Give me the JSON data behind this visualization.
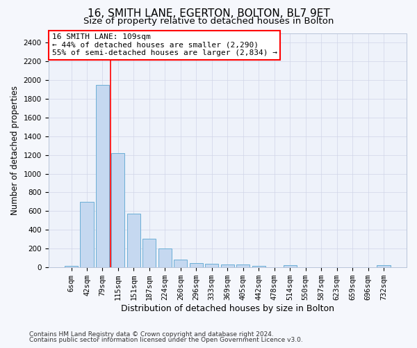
{
  "title1": "16, SMITH LANE, EGERTON, BOLTON, BL7 9ET",
  "title2": "Size of property relative to detached houses in Bolton",
  "xlabel": "Distribution of detached houses by size in Bolton",
  "ylabel": "Number of detached properties",
  "bar_labels": [
    "6sqm",
    "42sqm",
    "79sqm",
    "115sqm",
    "151sqm",
    "187sqm",
    "224sqm",
    "260sqm",
    "296sqm",
    "333sqm",
    "369sqm",
    "405sqm",
    "442sqm",
    "478sqm",
    "514sqm",
    "550sqm",
    "587sqm",
    "623sqm",
    "659sqm",
    "696sqm",
    "732sqm"
  ],
  "bar_values": [
    15,
    700,
    1950,
    1220,
    570,
    305,
    200,
    80,
    45,
    37,
    35,
    30,
    20,
    5,
    22,
    5,
    3,
    2,
    1,
    1,
    22
  ],
  "bar_color": "#c5d8f0",
  "bar_edge_color": "#6baed6",
  "vline_x_idx": 2.5,
  "vline_color": "red",
  "annotation_text": "16 SMITH LANE: 109sqm\n← 44% of detached houses are smaller (2,290)\n55% of semi-detached houses are larger (2,834) →",
  "annotation_box_color": "white",
  "annotation_box_edge": "red",
  "ylim": [
    0,
    2500
  ],
  "yticks": [
    0,
    200,
    400,
    600,
    800,
    1000,
    1200,
    1400,
    1600,
    1800,
    2000,
    2200,
    2400
  ],
  "footer1": "Contains HM Land Registry data © Crown copyright and database right 2024.",
  "footer2": "Contains public sector information licensed under the Open Government Licence v3.0.",
  "plot_bg_color": "#eef2fa",
  "fig_bg_color": "#f5f7fc",
  "grid_color": "#d0d5e8",
  "title1_fontsize": 11,
  "title2_fontsize": 9.5,
  "xlabel_fontsize": 9,
  "ylabel_fontsize": 8.5,
  "tick_fontsize": 7.5,
  "annotation_fontsize": 8,
  "footer_fontsize": 6.5
}
